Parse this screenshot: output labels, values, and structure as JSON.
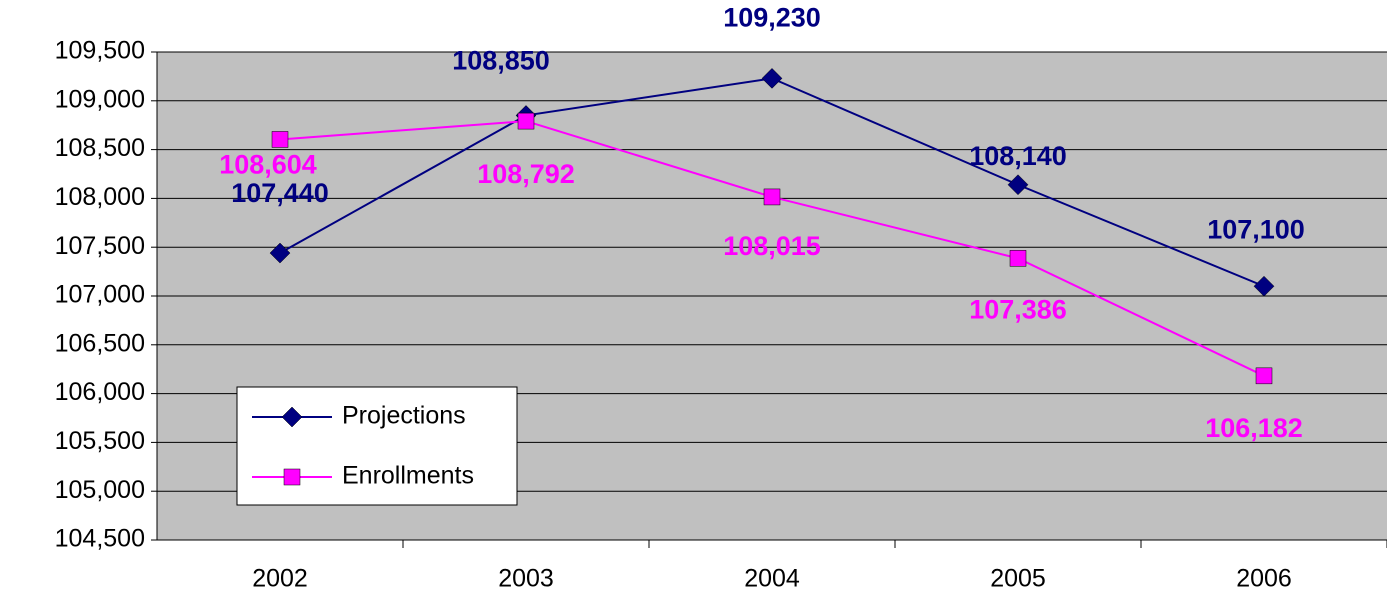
{
  "chart_data": {
    "type": "line",
    "categories": [
      "2002",
      "2003",
      "2004",
      "2005",
      "2006"
    ],
    "series": [
      {
        "name": "Projections",
        "color": "#000080",
        "marker": "diamond",
        "values": [
          107440,
          108850,
          109230,
          108140,
          107100
        ],
        "value_labels": [
          "107,440",
          "108,850",
          "109,230",
          "108,140",
          "107,100"
        ]
      },
      {
        "name": "Enrollments",
        "color": "#ff00ff",
        "marker": "square",
        "values": [
          108604,
          108792,
          108015,
          107386,
          106182
        ],
        "value_labels": [
          "108,604",
          "108,792",
          "108,015",
          "107,386",
          "106,182"
        ]
      }
    ],
    "ylim": [
      104500,
      109500
    ],
    "yticks": [
      {
        "value": 104500,
        "label": "104,500"
      },
      {
        "value": 105000,
        "label": "105,000"
      },
      {
        "value": 105500,
        "label": "105,500"
      },
      {
        "value": 106000,
        "label": "106,000"
      },
      {
        "value": 106500,
        "label": "106,500"
      },
      {
        "value": 107000,
        "label": "107,000"
      },
      {
        "value": 107500,
        "label": "107,500"
      },
      {
        "value": 108000,
        "label": "108,000"
      },
      {
        "value": 108500,
        "label": "108,500"
      },
      {
        "value": 109000,
        "label": "109,000"
      },
      {
        "value": 109500,
        "label": "109,500"
      }
    ],
    "grid": true,
    "legend": "lower left"
  }
}
